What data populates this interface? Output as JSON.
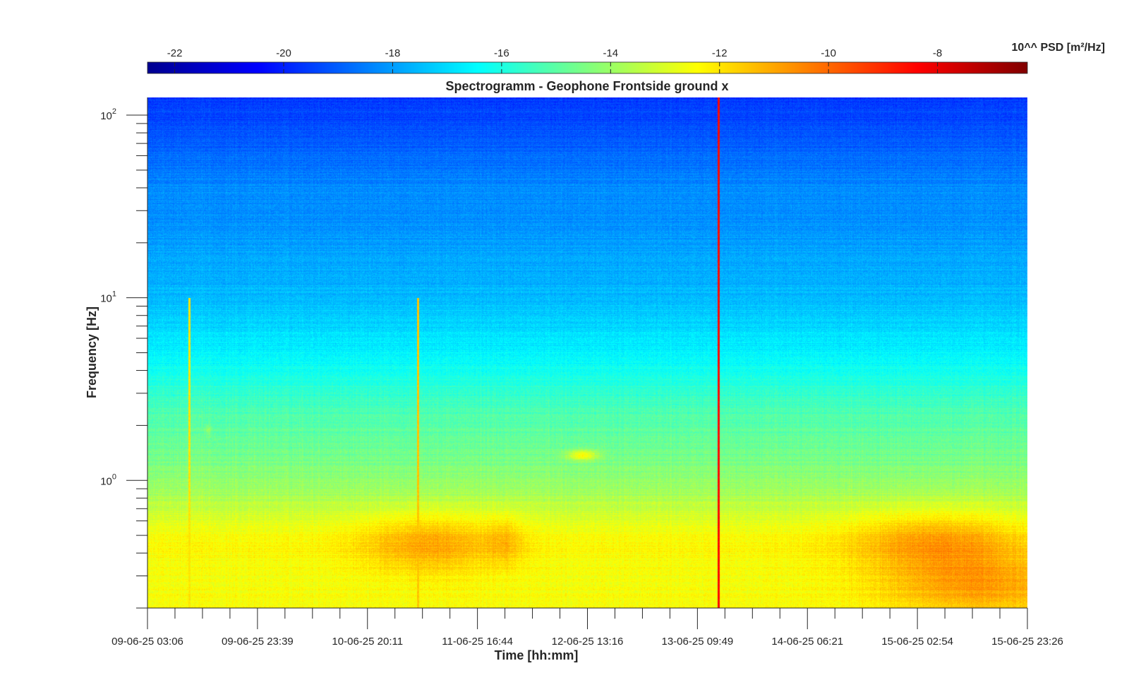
{
  "chart_data": {
    "type": "heatmap",
    "title": "Spectrogramm - Geophone Frontside ground x",
    "xlabel": "Time [hh:mm]",
    "ylabel": "Frequency [Hz]",
    "y_scale": "log",
    "ylim": [
      0.2,
      125
    ],
    "x_ticks": [
      {
        "label": "09-06-25 03:06",
        "pos": 0
      },
      {
        "label": "09-06-25 23:39",
        "pos": 1
      },
      {
        "label": "10-06-25 20:11",
        "pos": 2
      },
      {
        "label": "11-06-25 16:44",
        "pos": 3
      },
      {
        "label": "12-06-25 13:16",
        "pos": 4
      },
      {
        "label": "13-06-25 09:49",
        "pos": 5
      },
      {
        "label": "14-06-25 06:21",
        "pos": 6
      },
      {
        "label": "15-06-25 02:54",
        "pos": 7
      },
      {
        "label": "15-06-25 23:26",
        "pos": 8
      }
    ],
    "x_minor_per_major": 4,
    "y_ticks": [
      {
        "base": "10",
        "exp": "0",
        "value": 1
      },
      {
        "base": "10",
        "exp": "1",
        "value": 10
      },
      {
        "base": "10",
        "exp": "2",
        "value": 100
      }
    ],
    "colorbar": {
      "label": "10^^ PSD [m²/Hz]",
      "location": "top",
      "colormap": "jet",
      "range": [
        -22.5,
        -6.35
      ],
      "ticks": [
        "-22",
        "-20",
        "-18",
        "-16",
        "-14",
        "-12",
        "-10",
        "-8"
      ],
      "tick_values": [
        -22,
        -20,
        -18,
        -16,
        -14,
        -12,
        -10,
        -8
      ]
    },
    "psd_profile": {
      "freq_hz": [
        0.2,
        0.3,
        0.45,
        0.6,
        0.8,
        1.0,
        1.5,
        2.5,
        4,
        6.5,
        10,
        20,
        40,
        80,
        125
      ],
      "log10_psd": [
        -12.4,
        -12.6,
        -12.3,
        -12.9,
        -13.7,
        -14.2,
        -14.7,
        -15.3,
        -16.2,
        -17.0,
        -17.5,
        -18.0,
        -18.3,
        -19.2,
        -19.6
      ]
    },
    "features": [
      {
        "kind": "hotspot",
        "t": 2.55,
        "f": 0.45,
        "delta": 1.4,
        "dt": 0.45,
        "dlogf": 0.12
      },
      {
        "kind": "hotspot",
        "t": 3.25,
        "f": 0.47,
        "delta": 0.8,
        "dt": 0.12,
        "dlogf": 0.1
      },
      {
        "kind": "hotspot",
        "t": 7.15,
        "f": 0.47,
        "delta": 1.5,
        "dt": 0.55,
        "dlogf": 0.12
      },
      {
        "kind": "hotspot",
        "t": 7.55,
        "f": 0.27,
        "delta": 1.6,
        "dt": 0.65,
        "dlogf": 0.12
      },
      {
        "kind": "hotspot",
        "t": 3.95,
        "f": 1.38,
        "delta": 2.3,
        "dt": 0.1,
        "dlogf": 0.02
      },
      {
        "kind": "hotspot",
        "t": 0.55,
        "f": 1.9,
        "delta": 0.8,
        "dt": 0.02,
        "dlogf": 0.02
      },
      {
        "kind": "line",
        "t": 5.19,
        "value": -8.5
      },
      {
        "kind": "line",
        "t": 2.46,
        "value": -11.5
      },
      {
        "kind": "line",
        "t": 0.38,
        "value": -12.0
      }
    ]
  }
}
